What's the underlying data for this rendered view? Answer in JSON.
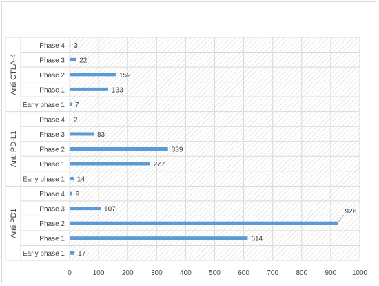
{
  "chart_data": {
    "type": "bar",
    "orientation": "horizontal",
    "title": "",
    "xlabel": "",
    "ylabel": "",
    "xlim": [
      0,
      1000
    ],
    "xticks": [
      0,
      100,
      200,
      300,
      400,
      500,
      600,
      700,
      800,
      900,
      1000
    ],
    "grid": true,
    "groups": [
      {
        "name": "Anti CTLA-4",
        "categories": [
          "Phase 4",
          "Phase 3",
          "Phase 2",
          "Phase 1",
          "Early phase 1"
        ],
        "values": [
          3,
          22,
          159,
          133,
          7
        ]
      },
      {
        "name": "Anti PD-L1",
        "categories": [
          "Phase 4",
          "Phase 3",
          "Phase 2",
          "Phase 1",
          "Early phase 1"
        ],
        "values": [
          2,
          83,
          339,
          277,
          14
        ]
      },
      {
        "name": "Anti PD1",
        "categories": [
          "Phase 4",
          "Phase 3",
          "Phase 2",
          "Phase 1",
          "Early phase 1"
        ],
        "values": [
          9,
          107,
          926,
          614,
          17
        ]
      }
    ],
    "colors": {
      "bar": "#5b9bd5",
      "grid": "#d9d9d9",
      "text": "#404040"
    }
  }
}
